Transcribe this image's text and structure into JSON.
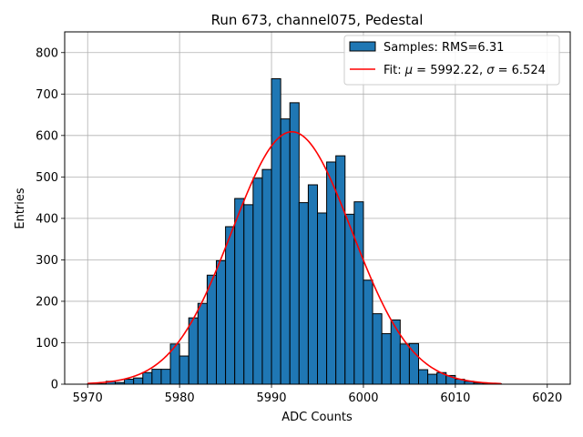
{
  "chart_data": {
    "type": "bar",
    "title": "Run 673, channel075, Pedestal",
    "xlabel": "ADC Counts",
    "ylabel": "Entries",
    "xlim": [
      5967.5,
      6022.5
    ],
    "ylim": [
      0,
      850
    ],
    "xticks": [
      5970,
      5980,
      5990,
      6000,
      6010,
      6020
    ],
    "yticks": [
      0,
      100,
      200,
      300,
      400,
      500,
      600,
      700,
      800
    ],
    "grid": true,
    "legend_position": "top-right",
    "histogram": {
      "name": "Samples: RMS=6.31",
      "color": "#1f77b4",
      "edgecolor": "#000000",
      "bin_edges": [
        5970,
        5971,
        5972,
        5973,
        5974,
        5975,
        5976,
        5977,
        5978,
        5979,
        5980,
        5981,
        5982,
        5983,
        5984,
        5985,
        5986,
        5987,
        5988,
        5989,
        5990,
        5991,
        5992,
        5993,
        5994,
        5995,
        5996,
        5997,
        5998,
        5999,
        6000,
        6001,
        6002,
        6003,
        6004,
        6005,
        6006,
        6007,
        6008,
        6009,
        6010,
        6011,
        6012,
        6013,
        6014,
        6015
      ],
      "counts": [
        1,
        1,
        7,
        4,
        12,
        15,
        28,
        36,
        36,
        97,
        68,
        160,
        195,
        263,
        298,
        380,
        448,
        433,
        497,
        518,
        737,
        640,
        679,
        438,
        481,
        413,
        536,
        551,
        410,
        440,
        251,
        170,
        122,
        155,
        97,
        98,
        35,
        24,
        28,
        21,
        12,
        7,
        3,
        2,
        1
      ]
    },
    "fit": {
      "name": "Fit: μ = 5992.22, σ = 6.524",
      "name_parts": {
        "prefix": "Fit: ",
        "mu": "μ",
        "mu_value": " = 5992.22, ",
        "sigma": "σ",
        "sigma_value": " = 6.524"
      },
      "color": "#ff0000",
      "mu": 5992.22,
      "sigma": 6.524,
      "amplitude": 609,
      "x_range": [
        5970,
        6015
      ]
    }
  }
}
